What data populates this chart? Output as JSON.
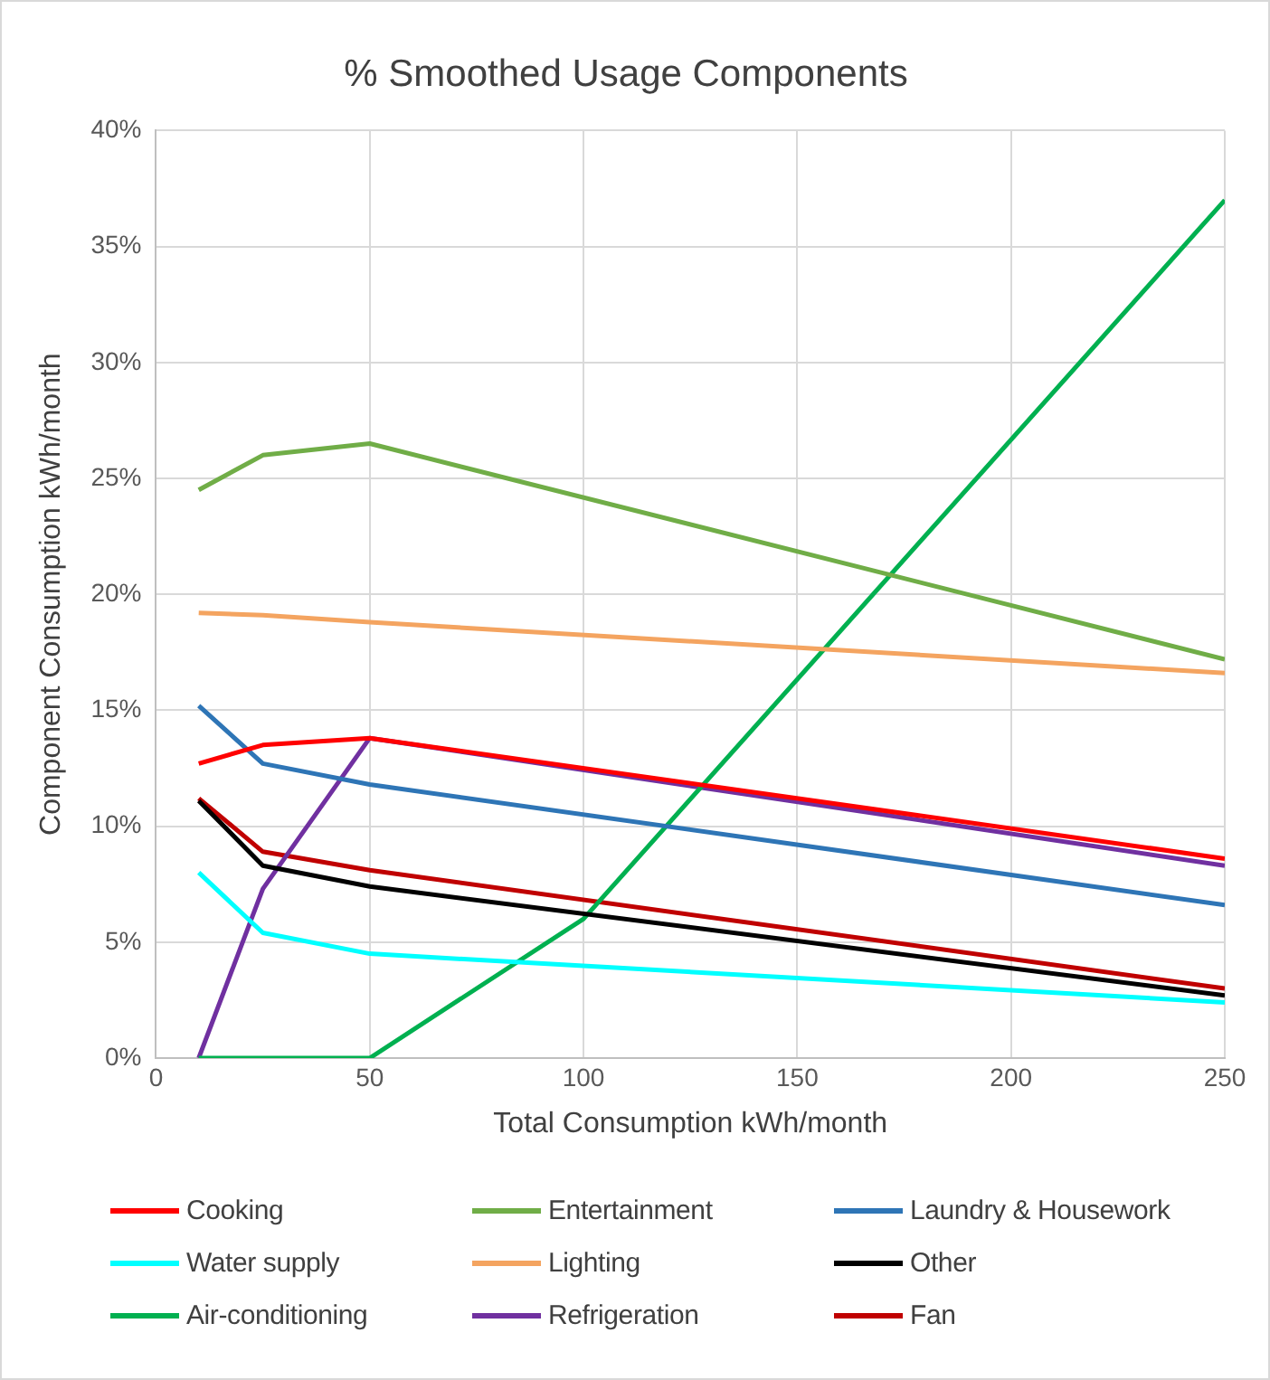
{
  "chart_data": {
    "type": "line",
    "title": "% Smoothed Usage Components",
    "xlabel": "Total Consumption kWh/month",
    "ylabel": "Component Consumption kWh/month",
    "xlim": [
      0,
      250
    ],
    "xticks": [
      0,
      50,
      100,
      150,
      200,
      250
    ],
    "ylim": [
      0,
      40
    ],
    "yticks": [
      {
        "value": 0,
        "label": "0%"
      },
      {
        "value": 5,
        "label": "5%"
      },
      {
        "value": 10,
        "label": "10%"
      },
      {
        "value": 15,
        "label": "15%"
      },
      {
        "value": 20,
        "label": "20%"
      },
      {
        "value": 25,
        "label": "25%"
      },
      {
        "value": 30,
        "label": "30%"
      },
      {
        "value": 35,
        "label": "35%"
      },
      {
        "value": 40,
        "label": "40%"
      }
    ],
    "grid": true,
    "legend": "bottom",
    "marker": "none",
    "line_style": "solid",
    "series": [
      {
        "name": "Cooking",
        "color": "#ff0000",
        "x": [
          10,
          25,
          50,
          250
        ],
        "values": [
          12.7,
          13.5,
          13.8,
          8.6
        ]
      },
      {
        "name": "Entertainment",
        "color": "#70ad47",
        "x": [
          10,
          25,
          50,
          250
        ],
        "values": [
          24.5,
          26.0,
          26.5,
          17.2
        ]
      },
      {
        "name": "Laundry & Housework",
        "color": "#2e75b6",
        "x": [
          10,
          25,
          50,
          250
        ],
        "values": [
          15.2,
          12.7,
          11.8,
          6.6
        ]
      },
      {
        "name": "Water supply",
        "color": "#00ffff",
        "x": [
          10,
          25,
          50,
          250
        ],
        "values": [
          8.0,
          5.4,
          4.5,
          2.4
        ]
      },
      {
        "name": "Lighting",
        "color": "#f4a460",
        "x": [
          10,
          25,
          50,
          250
        ],
        "values": [
          19.2,
          19.1,
          18.8,
          16.6
        ]
      },
      {
        "name": "Other",
        "color": "#000000",
        "x": [
          10,
          25,
          50,
          250
        ],
        "values": [
          11.1,
          8.3,
          7.4,
          2.7
        ]
      },
      {
        "name": "Air-conditioning",
        "color": "#00b050",
        "x": [
          10,
          25,
          50,
          100,
          250
        ],
        "values": [
          0,
          0,
          0,
          6.0,
          37.0
        ]
      },
      {
        "name": "Refrigeration",
        "color": "#7030a0",
        "x": [
          10,
          25,
          50,
          250
        ],
        "values": [
          0,
          7.3,
          13.8,
          8.3
        ]
      },
      {
        "name": "Fan",
        "color": "#c00000",
        "x": [
          10,
          25,
          50,
          250
        ],
        "values": [
          11.2,
          8.9,
          8.1,
          3.0
        ]
      }
    ]
  }
}
